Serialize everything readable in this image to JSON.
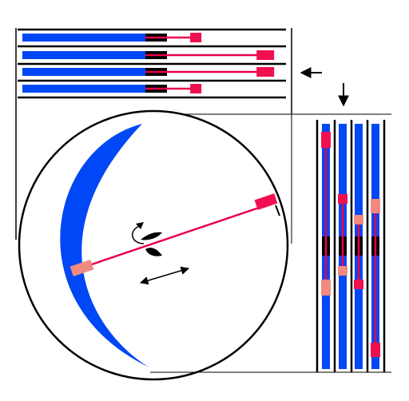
{
  "colors": {
    "background": "#ffffff",
    "frame": "#000000",
    "blue_body": "#0047f5",
    "rod": "#e8004a",
    "cap": "#f0104f",
    "cap_light": "#f08a80",
    "crescent": "#0047f5",
    "arrow": "#000000"
  },
  "top_panel": {
    "rods": [
      {
        "name": "top-rod-1",
        "extension": 0.14
      },
      {
        "name": "top-rod-2",
        "extension": 0.34
      },
      {
        "name": "top-rod-3",
        "extension": 0.34
      },
      {
        "name": "top-rod-4",
        "extension": 0.14
      }
    ]
  },
  "side_panel": {
    "rods": [
      {
        "name": "side-rod-1",
        "cap_top": "cap",
        "cap_bottom": "cap_light"
      },
      {
        "name": "side-rod-2",
        "cap_top": "cap",
        "cap_bottom": "cap_light"
      },
      {
        "name": "side-rod-3",
        "cap_top": "cap_light",
        "cap_bottom": "cap"
      },
      {
        "name": "side-rod-4",
        "cap_top": "cap_light",
        "cap_bottom": "cap"
      }
    ]
  },
  "disc": {
    "crescent_icon": "crescent-shape",
    "rotation_icon": "rotate-arrow-icon",
    "translation_icon": "double-arrow-icon"
  },
  "arrows": {
    "left_arrow_icon": "left-arrow-icon",
    "down_arrow_icon": "down-arrow-icon"
  }
}
